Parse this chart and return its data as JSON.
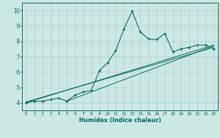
{
  "xlabel": "Humidex (Indice chaleur)",
  "ylabel": "",
  "bg_color": "#cce8e4",
  "grid_color": "#aacccc",
  "line_color": "#006655",
  "xlim": [
    -0.5,
    23.5
  ],
  "ylim": [
    3.5,
    10.5
  ],
  "xticks": [
    0,
    1,
    2,
    3,
    4,
    5,
    6,
    7,
    8,
    9,
    10,
    11,
    12,
    13,
    14,
    15,
    16,
    17,
    18,
    19,
    20,
    21,
    22,
    23
  ],
  "yticks": [
    4,
    5,
    6,
    7,
    8,
    9,
    10
  ],
  "main_x": [
    0,
    1,
    2,
    3,
    4,
    5,
    6,
    7,
    8,
    9,
    10,
    11,
    12,
    13,
    14,
    15,
    16,
    17,
    18,
    19,
    20,
    21,
    22,
    23
  ],
  "main_y": [
    4.0,
    4.1,
    4.1,
    4.2,
    4.3,
    4.1,
    4.5,
    4.7,
    4.8,
    6.1,
    6.6,
    7.4,
    8.8,
    9.95,
    8.6,
    8.15,
    8.1,
    8.5,
    7.3,
    7.5,
    7.6,
    7.75,
    7.75,
    7.5
  ],
  "line1_x": [
    0,
    23
  ],
  "line1_y": [
    4.0,
    7.75
  ],
  "line2_x": [
    5,
    23
  ],
  "line2_y": [
    4.1,
    7.7
  ],
  "line3_x": [
    0,
    23
  ],
  "line3_y": [
    4.05,
    7.6
  ]
}
